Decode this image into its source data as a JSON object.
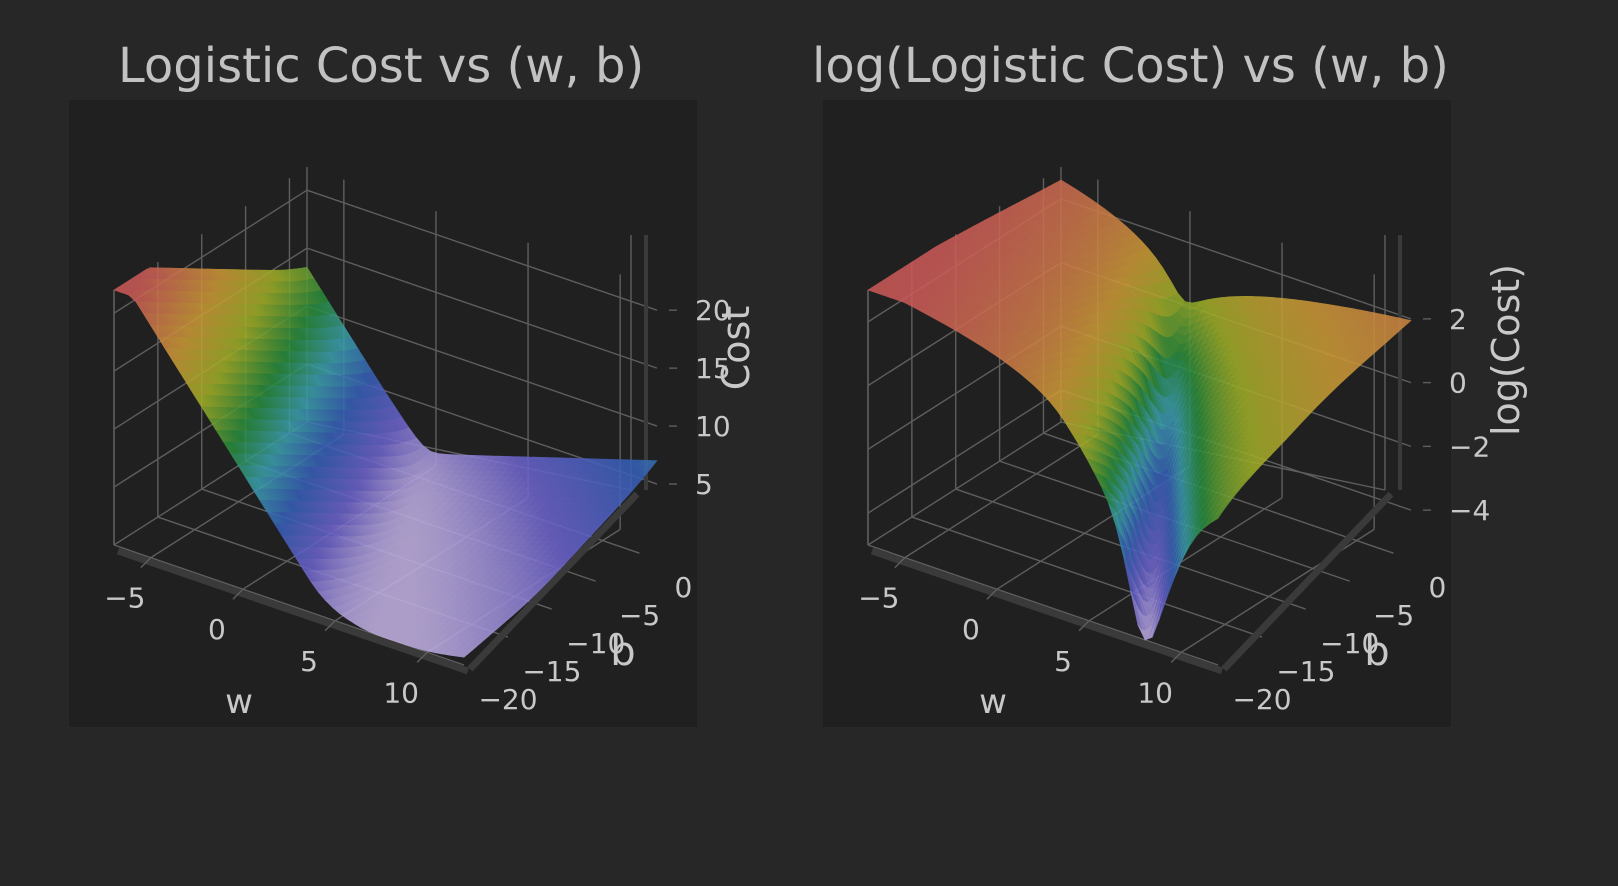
{
  "chart_data": [
    {
      "type": "surface3d",
      "title": "Logistic Cost vs (w, b)",
      "xlabel": "w",
      "ylabel": "b",
      "zlabel": "Cost",
      "x_ticks": [
        "−5",
        "0",
        "5",
        "10"
      ],
      "y_ticks": [
        "0",
        "−5",
        "−10",
        "−15",
        "−20"
      ],
      "z_ticks": [
        "20",
        "15",
        "10",
        "5"
      ],
      "xlim": [
        -7,
        12
      ],
      "ylim": [
        -20,
        2
      ],
      "zlim": [
        0,
        22
      ],
      "grid": true,
      "surface": {
        "w_range": [
          -7,
          12
        ],
        "b_range": [
          -20,
          2
        ],
        "function": "logistic cost",
        "colorscale": "jet (reversed) — low cost blue/lavender, high cost red"
      }
    },
    {
      "type": "surface3d",
      "title": "log(Logistic Cost) vs (w, b)",
      "xlabel": "w",
      "ylabel": "b",
      "zlabel": "log(Cost)",
      "x_ticks": [
        "−5",
        "0",
        "5",
        "10"
      ],
      "y_ticks": [
        "0",
        "−5",
        "−10",
        "−15",
        "−20"
      ],
      "z_ticks": [
        "2",
        "0",
        "−2",
        "−4"
      ],
      "xlim": [
        -7,
        12
      ],
      "ylim": [
        -20,
        2
      ],
      "zlim": [
        -5,
        3
      ],
      "grid": true,
      "surface": {
        "w_range": [
          -7,
          12
        ],
        "b_range": [
          -20,
          2
        ],
        "function": "log(logistic cost)",
        "colorscale": "jet (reversed) — low log-cost blue/lavender, high red"
      }
    }
  ],
  "colors": {
    "background": "#272727",
    "scene_background": "#202020",
    "grid": "#5e5e5e",
    "text": "#c8c8c8"
  }
}
